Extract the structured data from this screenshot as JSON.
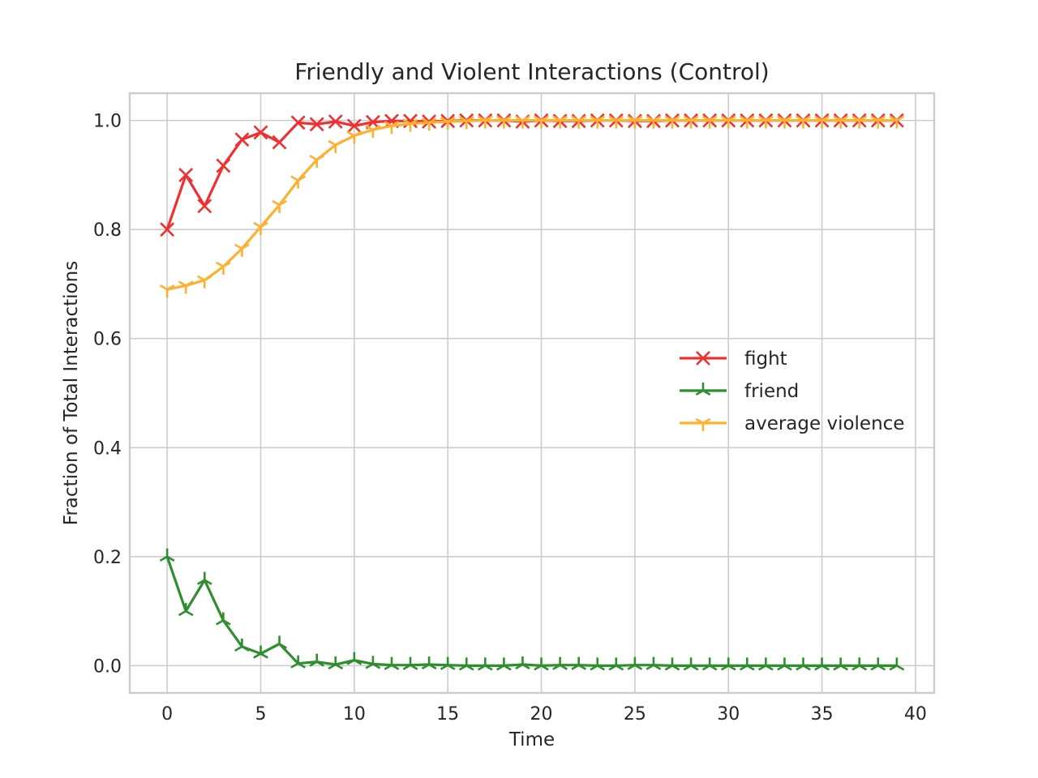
{
  "chart_data": {
    "type": "line",
    "title": "Friendly and Violent Interactions (Control)",
    "xlabel": "Time",
    "ylabel": "Fraction of Total Interactions",
    "xlim": [
      -2,
      41
    ],
    "ylim": [
      -0.05,
      1.05
    ],
    "xticks": [
      0,
      5,
      10,
      15,
      20,
      25,
      30,
      35,
      40
    ],
    "yticks": [
      0.0,
      0.2,
      0.4,
      0.6,
      0.8,
      1.0
    ],
    "ytick_labels": [
      "0.0",
      "0.2",
      "0.4",
      "0.6",
      "0.8",
      "1.0"
    ],
    "grid": true,
    "legend_position": "center-right",
    "x": [
      0,
      1,
      2,
      3,
      4,
      5,
      6,
      7,
      8,
      9,
      10,
      11,
      12,
      13,
      14,
      15,
      16,
      17,
      18,
      19,
      20,
      21,
      22,
      23,
      24,
      25,
      26,
      27,
      28,
      29,
      30,
      31,
      32,
      33,
      34,
      35,
      36,
      37,
      38,
      39
    ],
    "series": [
      {
        "name": "fight",
        "color": "#f03030",
        "marker": "x",
        "values": [
          0.8,
          0.9,
          0.843,
          0.917,
          0.965,
          0.978,
          0.96,
          0.996,
          0.993,
          0.998,
          0.99,
          0.997,
          0.999,
          0.999,
          0.998,
          0.999,
          1.0,
          1.0,
          1.0,
          0.998,
          1.0,
          0.999,
          0.999,
          1.0,
          1.0,
          0.999,
          0.999,
          1.0,
          1.0,
          1.0,
          1.0,
          1.0,
          1.0,
          1.0,
          1.0,
          1.0,
          1.0,
          1.0,
          1.0,
          1.0
        ]
      },
      {
        "name": "friend",
        "color": "#2f8f2f",
        "marker": "2",
        "values": [
          0.2,
          0.1,
          0.157,
          0.083,
          0.035,
          0.022,
          0.04,
          0.004,
          0.007,
          0.002,
          0.01,
          0.003,
          0.001,
          0.001,
          0.002,
          0.001,
          0.0,
          0.0,
          0.0,
          0.002,
          0.0,
          0.001,
          0.001,
          0.0,
          0.0,
          0.001,
          0.001,
          0.0,
          0.0,
          0.0,
          0.0,
          0.0,
          0.0,
          0.0,
          0.0,
          0.0,
          0.0,
          0.0,
          0.0,
          0.0
        ]
      },
      {
        "name": "average violence",
        "color": "#ffb030",
        "marker": "1",
        "values": [
          0.69,
          0.697,
          0.707,
          0.732,
          0.765,
          0.805,
          0.845,
          0.89,
          0.928,
          0.955,
          0.972,
          0.983,
          0.99,
          0.994,
          0.996,
          0.998,
          0.999,
          1.0,
          1.0,
          1.0,
          1.0,
          1.0,
          1.0,
          1.0,
          1.0,
          1.0,
          1.0,
          1.0,
          1.0,
          1.0,
          1.0,
          1.0,
          1.0,
          1.0,
          1.0,
          1.0,
          1.0,
          1.0,
          1.0,
          1.0
        ]
      }
    ]
  }
}
